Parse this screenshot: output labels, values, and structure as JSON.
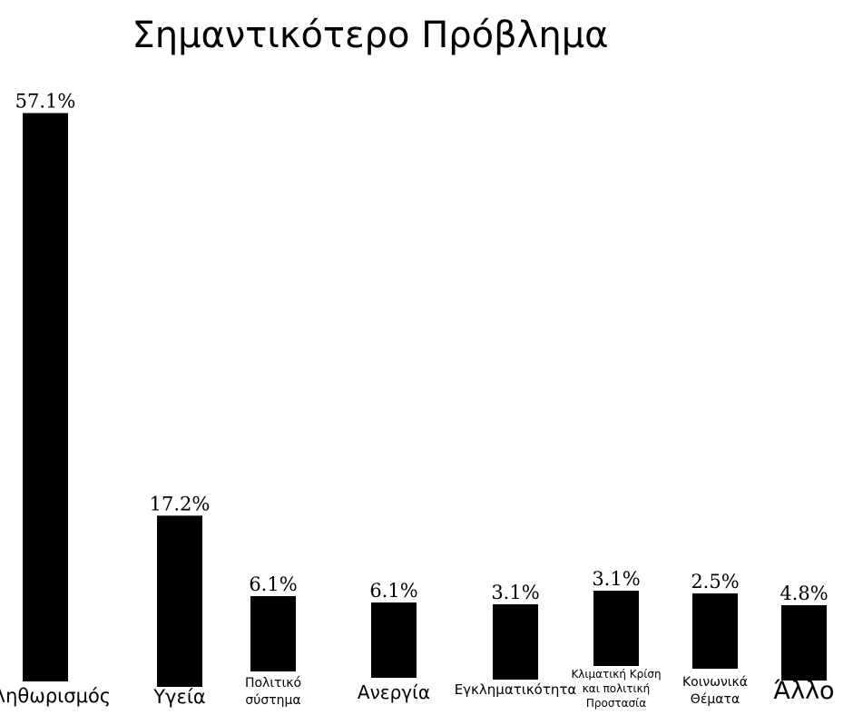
{
  "chart_data": {
    "type": "bar",
    "title": "Σημαντικότερο Πρόβλημα",
    "categories": [
      [
        "Πληθωρισμός"
      ],
      [
        "Υγεία"
      ],
      [
        "Πολιτικό",
        "σύστημα"
      ],
      [
        "Ανεργία"
      ],
      [
        "Εγκληματικότητα"
      ],
      [
        "Κλιματική Κρίση",
        "και πολιτική",
        "Προστασία"
      ],
      [
        "Κοινωνικά",
        "Θέματα"
      ],
      [
        "Άλλο"
      ]
    ],
    "values": [
      57.1,
      17.2,
      6.1,
      6.1,
      3.1,
      3.1,
      2.5,
      4.8
    ],
    "value_labels": [
      "57.1%",
      "17.2%",
      "6.1%",
      "6.1%",
      "3.1%",
      "3.1%",
      "2.5%",
      "4.8%"
    ],
    "bar_color": "#000000",
    "xlabel": "",
    "ylabel": "",
    "grid": false,
    "legend": "none"
  }
}
